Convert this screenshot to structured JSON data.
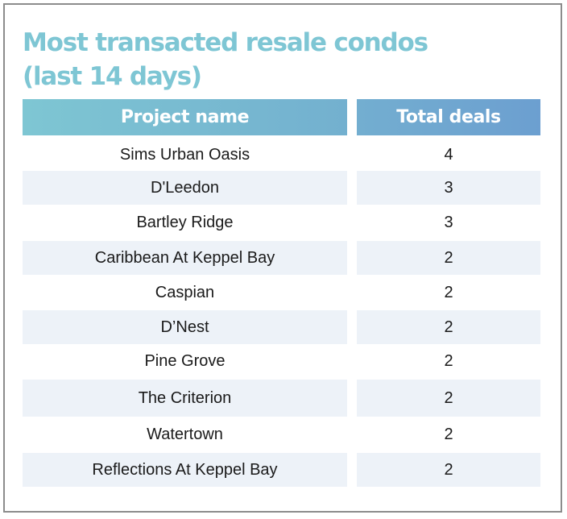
{
  "chart_data": {
    "type": "table",
    "title_lines": [
      "Most transacted resale condos",
      "(last 14 days)"
    ],
    "columns": [
      "Project name",
      "Total deals"
    ],
    "rows": [
      {
        "project": "Sims Urban Oasis",
        "deals": "4"
      },
      {
        "project": "D'Leedon",
        "deals": "3"
      },
      {
        "project": "Bartley Ridge",
        "deals": "3"
      },
      {
        "project": "Caribbean At Keppel Bay",
        "deals": "2"
      },
      {
        "project": "Caspian",
        "deals": "2"
      },
      {
        "project": "D’Nest",
        "deals": "2"
      },
      {
        "project": "Pine Grove",
        "deals": "2"
      },
      {
        "project": "The Criterion",
        "deals": "2"
      },
      {
        "project": "Watertown",
        "deals": "2"
      },
      {
        "project": "Reflections At Keppel Bay",
        "deals": "2"
      }
    ]
  },
  "colors": {
    "title": "#7ec6d4",
    "header_start": "#7ec6d3",
    "header_end": "#6c9fd0",
    "stripe": "#edf2f8",
    "text": "#1a1a1a",
    "border": "#8c8c8c"
  }
}
